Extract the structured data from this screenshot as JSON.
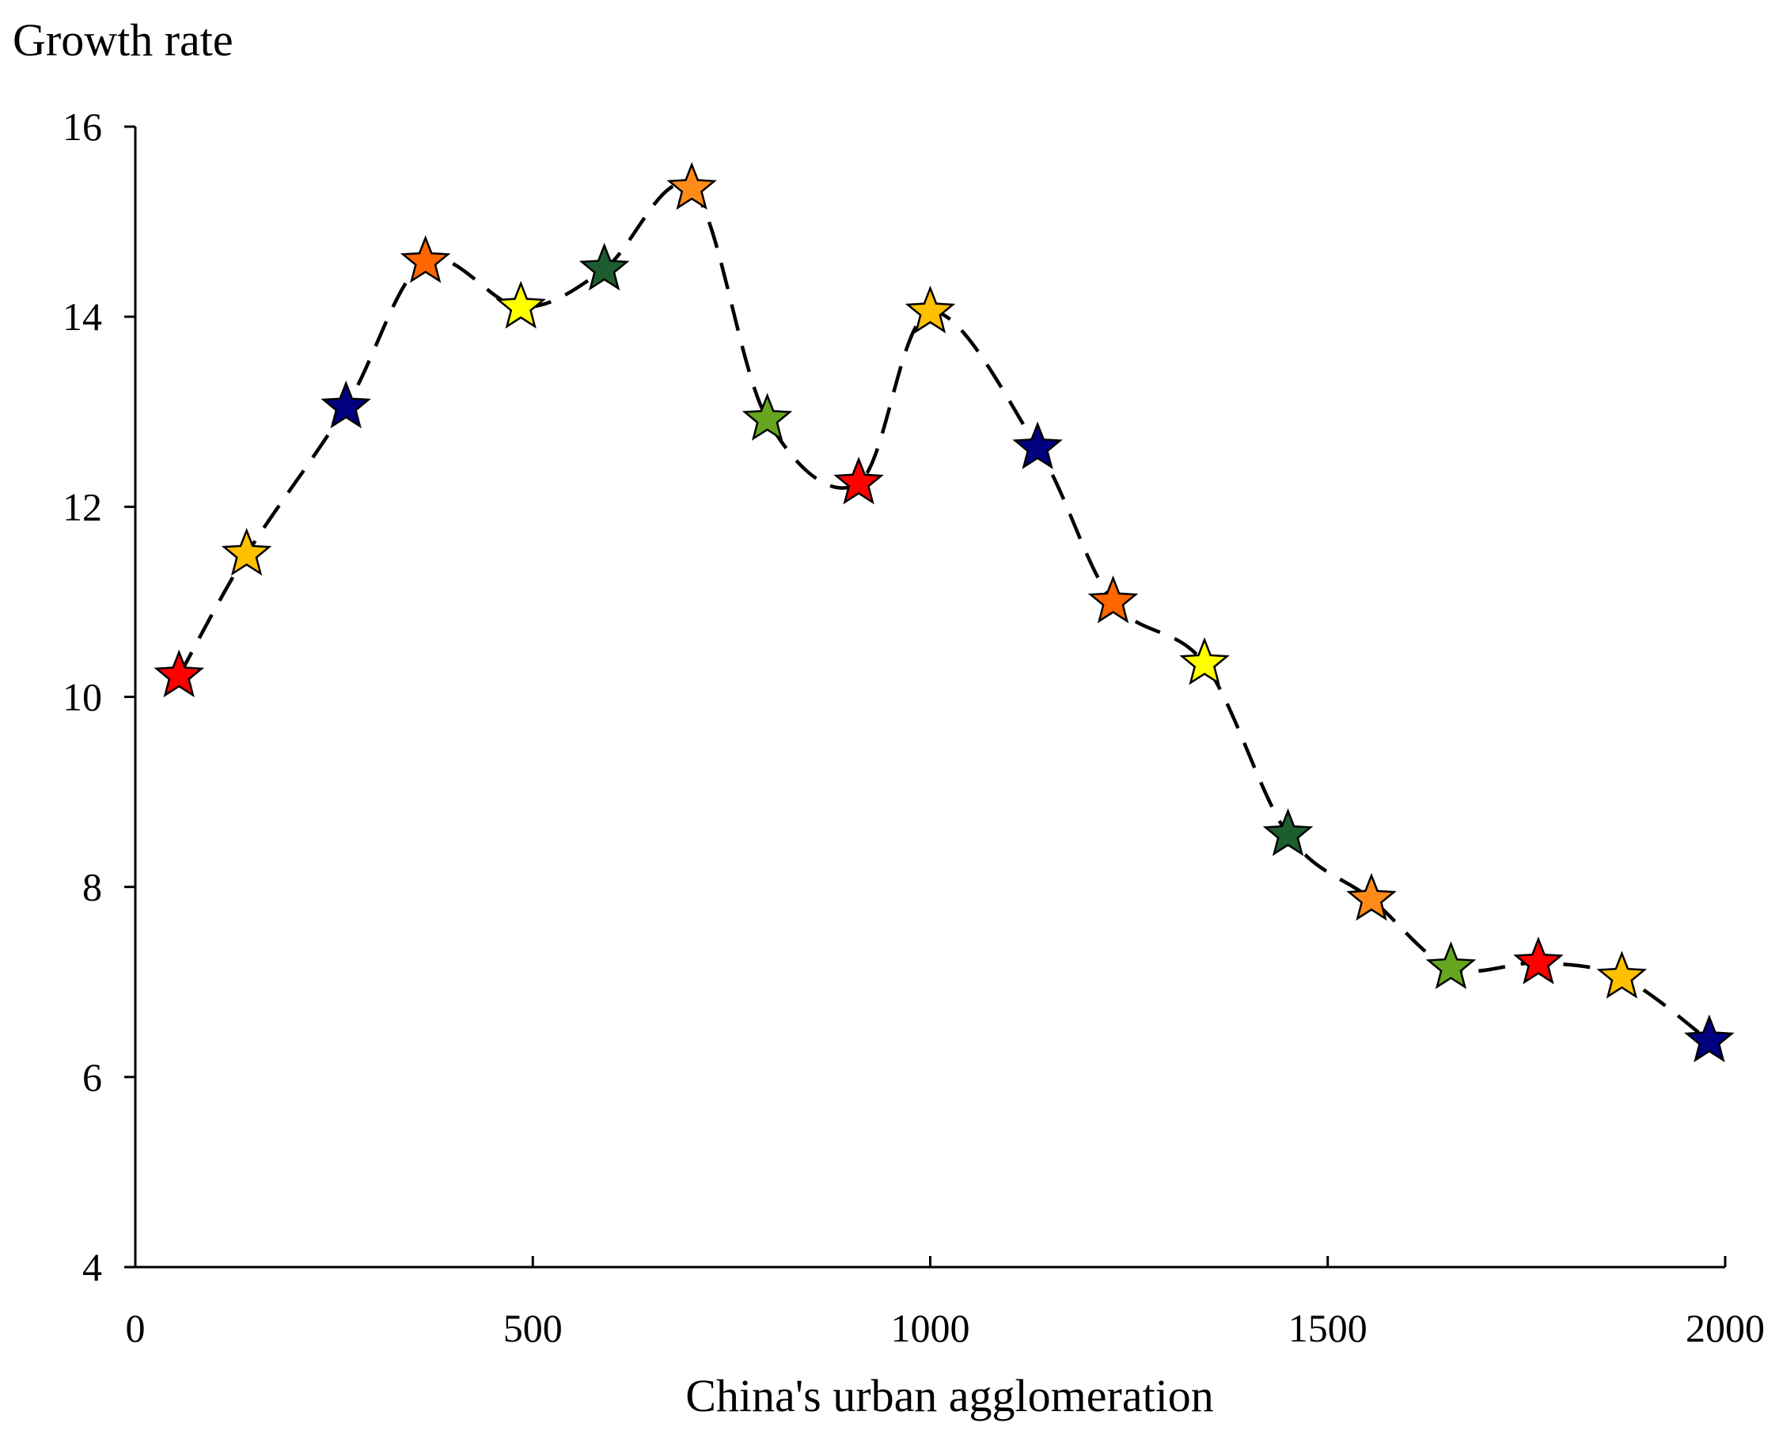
{
  "chart_data": {
    "type": "scatter",
    "title": "",
    "xlabel": "China's urban agglomeration",
    "ylabel": "Growth rate",
    "xlim": [
      0,
      2000
    ],
    "ylim": [
      4,
      16
    ],
    "xticks": [
      0,
      500,
      1000,
      1500,
      2000
    ],
    "yticks": [
      4,
      6,
      8,
      10,
      12,
      14,
      16
    ],
    "grid": false,
    "legend": "none",
    "line_style": "dashed smooth curve through points",
    "marker": "star",
    "series": [
      {
        "name": "Growth rate",
        "points": [
          {
            "x": 55,
            "y": 10.22,
            "color": "#ff0000"
          },
          {
            "x": 140,
            "y": 11.5,
            "color": "#ffc000"
          },
          {
            "x": 265,
            "y": 13.05,
            "color": "#000080"
          },
          {
            "x": 365,
            "y": 14.58,
            "color": "#ff6600"
          },
          {
            "x": 485,
            "y": 14.1,
            "color": "#ffff00"
          },
          {
            "x": 590,
            "y": 14.5,
            "color": "#1d5e30"
          },
          {
            "x": 700,
            "y": 15.35,
            "color": "#ff8c1a"
          },
          {
            "x": 795,
            "y": 12.92,
            "color": "#66a61e"
          },
          {
            "x": 910,
            "y": 12.25,
            "color": "#ff0000"
          },
          {
            "x": 1000,
            "y": 14.05,
            "color": "#ffc000"
          },
          {
            "x": 1135,
            "y": 12.62,
            "color": "#000080"
          },
          {
            "x": 1230,
            "y": 11.0,
            "color": "#ff6600"
          },
          {
            "x": 1345,
            "y": 10.35,
            "color": "#ffff00"
          },
          {
            "x": 1450,
            "y": 8.55,
            "color": "#1d5e30"
          },
          {
            "x": 1555,
            "y": 7.87,
            "color": "#ff8c1a"
          },
          {
            "x": 1655,
            "y": 7.15,
            "color": "#66a61e"
          },
          {
            "x": 1765,
            "y": 7.2,
            "color": "#ff0000"
          },
          {
            "x": 1870,
            "y": 7.05,
            "color": "#ffc000"
          },
          {
            "x": 1980,
            "y": 6.38,
            "color": "#000080"
          }
        ]
      }
    ]
  }
}
